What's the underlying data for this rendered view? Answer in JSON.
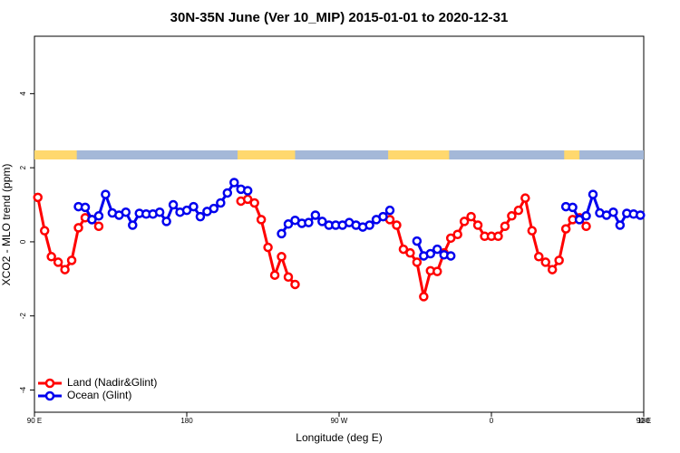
{
  "chart_data": {
    "type": "line",
    "title": "30N-35N June (Ver 10_MIP)   2015-01-01 to 2020-12-31",
    "xlabel": "Longitude (deg E)",
    "ylabel": "XCO2 - MLO trend (ppm)",
    "xlim": [
      90,
      450
    ],
    "xticks": [
      {
        "value": 90,
        "label": "90 E"
      },
      {
        "value": 180,
        "label": "180"
      },
      {
        "value": 270,
        "label": "90 W"
      },
      {
        "value": 360,
        "label": "0"
      },
      {
        "value": 450,
        "label": "90 E"
      },
      {
        "value": 540,
        "label": "180"
      }
    ],
    "ylim": [
      -4.6,
      5.55
    ],
    "yticks": [
      -4,
      -2,
      0,
      2,
      4
    ],
    "legend": "bottom-left",
    "land_mask": {
      "land_color": "#ffd86e",
      "ocean_color": "#a4b8d8",
      "land_ranges": [
        [
          90,
          115
        ],
        [
          210,
          244
        ],
        [
          299,
          335
        ],
        [
          403,
          412
        ]
      ]
    },
    "series": [
      {
        "name": "Land (Nadir&Glint)",
        "color": "#ff0000",
        "x": [
          92,
          96,
          100,
          104,
          108,
          112,
          116,
          120,
          124,
          128,
          null,
          212,
          216,
          220,
          224,
          228,
          232,
          236,
          240,
          244,
          null,
          300,
          304,
          308,
          312,
          316,
          320,
          324,
          328,
          332,
          336,
          340,
          344,
          348,
          352,
          356,
          360,
          364,
          368,
          372,
          376,
          380,
          384,
          388,
          392,
          396,
          400,
          404,
          408,
          412,
          416
        ],
        "values": [
          1.2,
          0.3,
          -0.4,
          -0.55,
          -0.75,
          -0.5,
          0.38,
          0.65,
          0.6,
          0.42,
          null,
          1.1,
          1.15,
          1.05,
          0.6,
          -0.15,
          -0.9,
          -0.4,
          -0.95,
          -1.15,
          null,
          0.6,
          0.45,
          -0.2,
          -0.3,
          -0.55,
          -1.48,
          -0.78,
          -0.8,
          -0.3,
          0.1,
          0.2,
          0.55,
          0.68,
          0.45,
          0.15,
          0.15,
          0.15,
          0.42,
          0.7,
          0.85,
          1.18,
          0.3,
          -0.4,
          -0.55,
          -0.75,
          -0.5,
          0.35,
          0.6,
          0.65,
          0.42
        ]
      },
      {
        "name": "Ocean (Glint)",
        "color": "#0000ee",
        "x": [
          116,
          120,
          124,
          128,
          132,
          136,
          140,
          144,
          148,
          152,
          156,
          160,
          164,
          168,
          172,
          176,
          180,
          184,
          188,
          192,
          196,
          200,
          204,
          208,
          212,
          216,
          null,
          236,
          240,
          244,
          248,
          252,
          256,
          260,
          264,
          268,
          272,
          276,
          280,
          284,
          288,
          292,
          296,
          300,
          null,
          316,
          320,
          324,
          328,
          332,
          336,
          null,
          404,
          408,
          412,
          416,
          420,
          424,
          428,
          432,
          436,
          440,
          444,
          448
        ],
        "values": [
          0.95,
          0.93,
          0.6,
          0.7,
          1.28,
          0.78,
          0.72,
          0.8,
          0.45,
          0.77,
          0.75,
          0.75,
          0.8,
          0.55,
          1.0,
          0.8,
          0.85,
          0.95,
          0.68,
          0.82,
          0.9,
          1.05,
          1.32,
          1.6,
          1.42,
          1.38,
          null,
          0.22,
          0.48,
          0.58,
          0.5,
          0.52,
          0.72,
          0.55,
          0.45,
          0.45,
          0.45,
          0.52,
          0.45,
          0.4,
          0.45,
          0.6,
          0.68,
          0.85,
          null,
          0.02,
          -0.38,
          -0.32,
          -0.2,
          -0.35,
          -0.38,
          null,
          0.95,
          0.93,
          0.6,
          0.7,
          1.28,
          0.78,
          0.72,
          0.8,
          0.45,
          0.77,
          0.75,
          0.72
        ]
      }
    ]
  }
}
